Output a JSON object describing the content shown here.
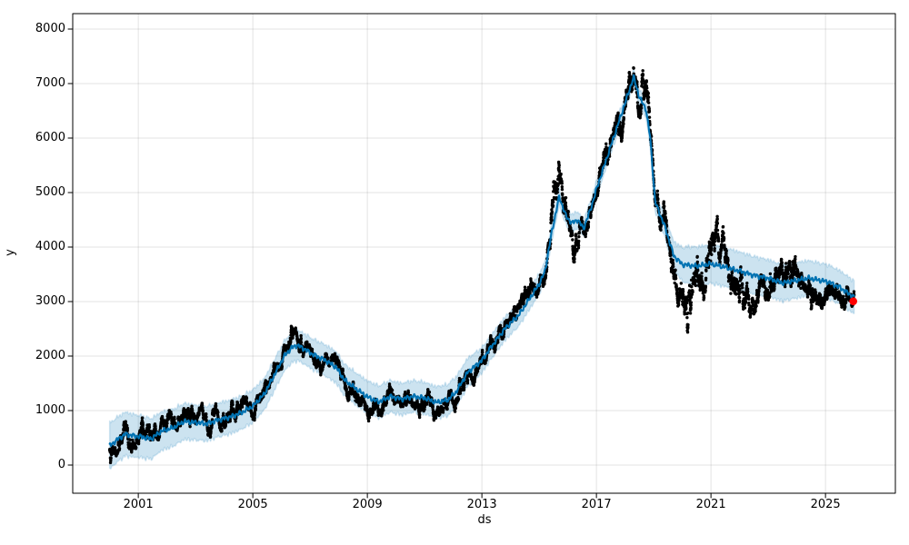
{
  "figure": {
    "background": "#ffffff",
    "window_title": ""
  },
  "chart_data": {
    "type": "line",
    "title": "",
    "xlabel": "ds",
    "ylabel": "y",
    "xlim": [
      1998.71,
      2027.44
    ],
    "ylim": [
      -517,
      8283
    ],
    "xticks": [
      2001,
      2005,
      2009,
      2013,
      2017,
      2021,
      2025
    ],
    "yticks": [
      0,
      1000,
      2000,
      3000,
      4000,
      5000,
      6000,
      7000,
      8000
    ],
    "grid": true,
    "legend": "none",
    "colors": {
      "forecast_line": "#0072B2",
      "uncertainty_band_fill": "rgba(0,114,178,0.2)",
      "uncertainty_band_edge": "rgba(0,114,178,0.15)",
      "observed_points": "#000000",
      "highlight_point": "#ff0000",
      "gridline": "rgba(128,128,128,0.22)",
      "spine": "#000000",
      "text": "#000000"
    },
    "series": [
      {
        "name": "yhat_forecast_line",
        "type": "line",
        "color": "#0072B2",
        "points": [
          [
            2000.0,
            350
          ],
          [
            2000.3,
            480
          ],
          [
            2000.55,
            570
          ],
          [
            2000.8,
            540
          ],
          [
            2001.1,
            520
          ],
          [
            2001.45,
            480
          ],
          [
            2001.8,
            620
          ],
          [
            2002.2,
            680
          ],
          [
            2002.6,
            800
          ],
          [
            2003.0,
            780
          ],
          [
            2003.4,
            760
          ],
          [
            2003.8,
            830
          ],
          [
            2004.2,
            880
          ],
          [
            2004.6,
            960
          ],
          [
            2005.0,
            1080
          ],
          [
            2005.4,
            1300
          ],
          [
            2005.8,
            1700
          ],
          [
            2006.1,
            2000
          ],
          [
            2006.35,
            2150
          ],
          [
            2006.55,
            2200
          ],
          [
            2006.8,
            2130
          ],
          [
            2007.1,
            2030
          ],
          [
            2007.5,
            1930
          ],
          [
            2007.9,
            1800
          ],
          [
            2008.2,
            1560
          ],
          [
            2008.6,
            1400
          ],
          [
            2009.0,
            1250
          ],
          [
            2009.4,
            1160
          ],
          [
            2009.8,
            1260
          ],
          [
            2010.2,
            1210
          ],
          [
            2010.6,
            1260
          ],
          [
            2011.0,
            1230
          ],
          [
            2011.4,
            1150
          ],
          [
            2011.8,
            1190
          ],
          [
            2012.1,
            1340
          ],
          [
            2012.5,
            1700
          ],
          [
            2013.0,
            1920
          ],
          [
            2013.3,
            2150
          ],
          [
            2013.8,
            2500
          ],
          [
            2014.3,
            2760
          ],
          [
            2014.6,
            3000
          ],
          [
            2015.0,
            3320
          ],
          [
            2015.2,
            3550
          ],
          [
            2015.45,
            4300
          ],
          [
            2015.7,
            4920
          ],
          [
            2015.95,
            4550
          ],
          [
            2016.15,
            4440
          ],
          [
            2016.35,
            4500
          ],
          [
            2016.55,
            4340
          ],
          [
            2016.8,
            4700
          ],
          [
            2017.0,
            5060
          ],
          [
            2017.5,
            5850
          ],
          [
            2018.0,
            6640
          ],
          [
            2018.3,
            7120
          ],
          [
            2018.5,
            6750
          ],
          [
            2018.73,
            6530
          ],
          [
            2018.88,
            6000
          ],
          [
            2019.05,
            4830
          ],
          [
            2019.4,
            4360
          ],
          [
            2019.7,
            3840
          ],
          [
            2020.0,
            3680
          ],
          [
            2020.5,
            3650
          ],
          [
            2021.0,
            3690
          ],
          [
            2021.5,
            3630
          ],
          [
            2022.0,
            3560
          ],
          [
            2022.5,
            3480
          ],
          [
            2023.0,
            3430
          ],
          [
            2023.5,
            3340
          ],
          [
            2024.0,
            3390
          ],
          [
            2024.4,
            3430
          ],
          [
            2024.8,
            3390
          ],
          [
            2025.1,
            3360
          ],
          [
            2025.5,
            3260
          ],
          [
            2025.8,
            3150
          ],
          [
            2026.0,
            3080
          ]
        ]
      },
      {
        "name": "uncertainty_interval",
        "type": "band",
        "half_width": [
          [
            2000.0,
            420
          ],
          [
            2000.6,
            400
          ],
          [
            2001.2,
            380
          ],
          [
            2002.0,
            345
          ],
          [
            2003.0,
            320
          ],
          [
            2004.0,
            310
          ],
          [
            2005.0,
            300
          ],
          [
            2006.0,
            275
          ],
          [
            2007.0,
            280
          ],
          [
            2008.0,
            290
          ],
          [
            2009.0,
            295
          ],
          [
            2010.0,
            290
          ],
          [
            2011.0,
            290
          ],
          [
            2012.0,
            285
          ],
          [
            2013.0,
            230
          ],
          [
            2014.0,
            210
          ],
          [
            2015.0,
            185
          ],
          [
            2015.7,
            160
          ],
          [
            2016.5,
            155
          ],
          [
            2017.5,
            145
          ],
          [
            2018.3,
            140
          ],
          [
            2018.9,
            160
          ],
          [
            2019.4,
            200
          ],
          [
            2019.8,
            280
          ],
          [
            2020.2,
            340
          ],
          [
            2020.6,
            355
          ],
          [
            2021.5,
            355
          ],
          [
            2022.5,
            345
          ],
          [
            2023.5,
            330
          ],
          [
            2024.5,
            320
          ],
          [
            2025.2,
            310
          ],
          [
            2026.0,
            300
          ]
        ]
      },
      {
        "name": "observed_scatter",
        "type": "scatter",
        "color": "#000000",
        "marker_radius": 1.7,
        "start": 2000.0,
        "end": 2026.0,
        "per_year": 240,
        "noise": {
          "seed": 42,
          "ar": 0.962,
          "step_sd": 30,
          "dot_jitter": 24
        },
        "offset_from_line": [
          [
            2000.0,
            -80
          ],
          [
            2000.45,
            60
          ],
          [
            2000.8,
            -30
          ],
          [
            2001.2,
            -60
          ],
          [
            2001.8,
            0
          ],
          [
            2004.4,
            80
          ],
          [
            2005.0,
            0
          ],
          [
            2013.4,
            -80
          ],
          [
            2014.0,
            0
          ],
          [
            2015.25,
            100
          ],
          [
            2015.45,
            450
          ],
          [
            2015.6,
            300
          ],
          [
            2015.8,
            350
          ],
          [
            2016.0,
            -100
          ],
          [
            2016.2,
            -250
          ],
          [
            2016.45,
            -300
          ],
          [
            2016.7,
            -100
          ],
          [
            2017.0,
            0
          ],
          [
            2017.5,
            150
          ],
          [
            2017.9,
            0
          ],
          [
            2018.1,
            300
          ],
          [
            2018.35,
            150
          ],
          [
            2018.5,
            -150
          ],
          [
            2018.62,
            700
          ],
          [
            2018.75,
            600
          ],
          [
            2018.9,
            0
          ],
          [
            2019.3,
            0
          ],
          [
            2019.8,
            -250
          ],
          [
            2020.1,
            -550
          ],
          [
            2020.3,
            -750
          ],
          [
            2020.5,
            -250
          ],
          [
            2020.8,
            50
          ],
          [
            2021.1,
            350
          ],
          [
            2021.4,
            300
          ],
          [
            2021.7,
            -100
          ],
          [
            2021.95,
            -420
          ],
          [
            2022.3,
            -380
          ],
          [
            2022.7,
            -250
          ],
          [
            2023.1,
            -150
          ],
          [
            2023.5,
            0
          ],
          [
            2023.75,
            250
          ],
          [
            2024.0,
            -50
          ],
          [
            2024.4,
            -150
          ],
          [
            2024.8,
            -250
          ],
          [
            2025.2,
            -150
          ],
          [
            2025.6,
            -200
          ],
          [
            2026.0,
            -100
          ]
        ],
        "spread_multiplier": [
          [
            2000.0,
            1.15
          ],
          [
            2014.0,
            1.0
          ],
          [
            2015.25,
            1.4
          ],
          [
            2015.45,
            3.2
          ],
          [
            2015.8,
            2.0
          ],
          [
            2016.3,
            1.8
          ],
          [
            2016.8,
            1.4
          ],
          [
            2017.4,
            1.6
          ],
          [
            2017.8,
            1.9
          ],
          [
            2018.1,
            2.3
          ],
          [
            2018.45,
            2.3
          ],
          [
            2018.7,
            2.4
          ],
          [
            2019.0,
            1.5
          ],
          [
            2019.6,
            1.7
          ],
          [
            2020.0,
            2.3
          ],
          [
            2020.3,
            3.0
          ],
          [
            2020.7,
            2.2
          ],
          [
            2021.1,
            2.4
          ],
          [
            2021.6,
            2.2
          ],
          [
            2022.0,
            2.0
          ],
          [
            2022.6,
            1.8
          ],
          [
            2023.2,
            1.6
          ],
          [
            2023.8,
            1.9
          ],
          [
            2024.3,
            1.8
          ],
          [
            2024.8,
            1.6
          ],
          [
            2025.3,
            1.4
          ],
          [
            2025.8,
            1.1
          ],
          [
            2026.0,
            1.0
          ]
        ]
      },
      {
        "name": "latest_point_highlight",
        "type": "scatter",
        "color": "#ff0000",
        "marker_radius": 4.3,
        "points": [
          [
            2025.97,
            3005
          ]
        ]
      }
    ]
  }
}
